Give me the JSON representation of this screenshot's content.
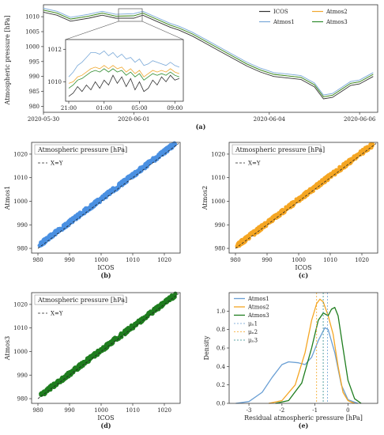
{
  "chart_data": [
    {
      "id": "a",
      "type": "line",
      "caption": "(a)",
      "ylabel": "Atmospheric pressure [hPa]",
      "xlabel": "",
      "xticks": [
        "2020-05-30",
        "2020-06-01",
        "2020-06-04",
        "2020-06-06"
      ],
      "xtick_pos": [
        0,
        2,
        5,
        7
      ],
      "ylim": [
        978,
        1014
      ],
      "yticks": [
        980,
        985,
        990,
        995,
        1000,
        1005,
        1010
      ],
      "legend": {
        "placement": "top-right",
        "items": [
          "ICOS",
          "Atmos2",
          "Atmos1",
          "Atmos3"
        ]
      },
      "series": [
        {
          "name": "ICOS",
          "color": "#333333",
          "x": [
            0,
            0.3,
            0.6,
            1.0,
            1.3,
            1.6,
            2.0,
            2.2,
            2.5,
            2.8,
            3.0,
            3.3,
            3.6,
            3.9,
            4.2,
            4.5,
            4.8,
            5.1,
            5.4,
            5.7,
            6.0,
            6.2,
            6.4,
            6.6,
            6.8,
            7.0,
            7.3
          ],
          "y": [
            1011.5,
            1010.5,
            1008.5,
            1009.5,
            1010.5,
            1009.5,
            1009.5,
            1010.5,
            1008.5,
            1006.5,
            1005.5,
            1003.5,
            1001,
            998.5,
            996,
            993.5,
            991.5,
            990,
            989.5,
            989,
            986.5,
            982.5,
            983,
            985,
            987,
            987.5,
            990
          ]
        },
        {
          "name": "Atmos1",
          "color": "#78a8d8",
          "x": [
            0,
            0.3,
            0.6,
            1.0,
            1.3,
            1.6,
            2.0,
            2.2,
            2.5,
            2.8,
            3.0,
            3.3,
            3.6,
            3.9,
            4.2,
            4.5,
            4.8,
            5.1,
            5.4,
            5.7,
            6.0,
            6.2,
            6.4,
            6.6,
            6.8,
            7.0,
            7.3
          ],
          "y": [
            1012.8,
            1011.8,
            1009.8,
            1010.8,
            1011.8,
            1010.8,
            1011,
            1011.8,
            1009.8,
            1007.8,
            1006.8,
            1004.8,
            1002.3,
            999.8,
            997.3,
            994.8,
            992.8,
            991.3,
            990.8,
            990.3,
            987.8,
            983.8,
            984.3,
            986.3,
            988.3,
            988.8,
            991.3
          ]
        },
        {
          "name": "Atmos2",
          "color": "#f0a830",
          "x": [
            0,
            0.3,
            0.6,
            1.0,
            1.3,
            1.6,
            2.0,
            2.2,
            2.5,
            2.8,
            3.0,
            3.3,
            3.6,
            3.9,
            4.2,
            4.5,
            4.8,
            5.1,
            5.4,
            5.7,
            6.0,
            6.2,
            6.4,
            6.6,
            6.8,
            7.0,
            7.3
          ],
          "y": [
            1012.2,
            1011.2,
            1009.2,
            1010.2,
            1011.2,
            1010.2,
            1010.3,
            1011.2,
            1009.2,
            1007.2,
            1006.2,
            1004.2,
            1001.7,
            999.2,
            996.7,
            994.2,
            992.2,
            990.7,
            990.2,
            989.7,
            987.2,
            983.2,
            983.7,
            985.7,
            987.7,
            988.2,
            990.7
          ]
        },
        {
          "name": "Atmos3",
          "color": "#2e8b2e",
          "x": [
            0,
            0.3,
            0.6,
            1.0,
            1.3,
            1.6,
            2.0,
            2.2,
            2.5,
            2.8,
            3.0,
            3.3,
            3.6,
            3.9,
            4.2,
            4.5,
            4.8,
            5.1,
            5.4,
            5.7,
            6.0,
            6.2,
            6.4,
            6.6,
            6.8,
            7.0,
            7.3
          ],
          "y": [
            1012.2,
            1011.2,
            1009.2,
            1010.2,
            1011.2,
            1010.2,
            1010.3,
            1011.2,
            1009.2,
            1007.2,
            1006.2,
            1004.2,
            1001.7,
            999.2,
            996.7,
            994.2,
            992.2,
            990.7,
            990.2,
            989.7,
            987.2,
            983.2,
            983.7,
            985.7,
            987.7,
            988.2,
            990.7
          ]
        }
      ],
      "inset": {
        "xticks": [
          "21:00",
          "01:00",
          "05:00",
          "09:00"
        ],
        "xtick_pos": [
          0,
          4,
          8,
          12
        ],
        "yticks": [
          1010,
          1012
        ],
        "ylim": [
          1008.8,
          1012.6
        ],
        "series": [
          {
            "name": "ICOS",
            "color": "#333333",
            "x": [
              0,
              0.5,
              1,
              1.5,
              2,
              2.5,
              3,
              3.5,
              4,
              4.5,
              5,
              5.5,
              6,
              6.5,
              7,
              7.5,
              8,
              8.5,
              9,
              9.5,
              10,
              10.5,
              11,
              11.5,
              12,
              12.5
            ],
            "y": [
              1009.1,
              1009.3,
              1009.7,
              1009.4,
              1009.8,
              1009.5,
              1010.0,
              1009.6,
              1010.1,
              1009.8,
              1010.4,
              1009.9,
              1010.3,
              1009.7,
              1010.2,
              1009.5,
              1010.0,
              1009.4,
              1009.6,
              1010.1,
              1009.8,
              1010.3,
              1010.0,
              1010.4,
              1010.1,
              1010.2
            ]
          },
          {
            "name": "Atmos1",
            "color": "#78a8d8",
            "x": [
              0,
              0.5,
              1,
              1.5,
              2,
              2.5,
              3,
              3.5,
              4,
              4.5,
              5,
              5.5,
              6,
              6.5,
              7,
              7.5,
              8,
              8.5,
              9,
              9.5,
              10,
              10.5,
              11,
              11.5,
              12,
              12.5
            ],
            "y": [
              1010.3,
              1010.6,
              1011.0,
              1011.2,
              1011.5,
              1011.8,
              1011.8,
              1011.7,
              1011.9,
              1011.6,
              1011.8,
              1011.5,
              1011.7,
              1011.4,
              1011.5,
              1011.2,
              1011.4,
              1011.0,
              1011.1,
              1011.3,
              1011.2,
              1011.1,
              1011.0,
              1011.2,
              1011.0,
              1010.9
            ]
          },
          {
            "name": "Atmos2",
            "color": "#f0a830",
            "x": [
              0,
              0.5,
              1,
              1.5,
              2,
              2.5,
              3,
              3.5,
              4,
              4.5,
              5,
              5.5,
              6,
              6.5,
              7,
              7.5,
              8,
              8.5,
              9,
              9.5,
              10,
              10.5,
              11,
              11.5,
              12,
              12.5
            ],
            "y": [
              1009.9,
              1010.0,
              1010.3,
              1010.4,
              1010.6,
              1010.8,
              1010.9,
              1010.8,
              1011.0,
              1010.8,
              1011.0,
              1010.8,
              1010.9,
              1010.6,
              1010.8,
              1010.5,
              1010.7,
              1010.3,
              1010.5,
              1010.7,
              1010.6,
              1010.7,
              1010.6,
              1010.8,
              1010.6,
              1010.5
            ]
          },
          {
            "name": "Atmos3",
            "color": "#2e8b2e",
            "x": [
              0,
              0.5,
              1,
              1.5,
              2,
              2.5,
              3,
              3.5,
              4,
              4.5,
              5,
              5.5,
              6,
              6.5,
              7,
              7.5,
              8,
              8.5,
              9,
              9.5,
              10,
              10.5,
              11,
              11.5,
              12,
              12.5
            ],
            "y": [
              1009.6,
              1009.8,
              1010.1,
              1010.2,
              1010.4,
              1010.6,
              1010.7,
              1010.6,
              1010.8,
              1010.6,
              1010.8,
              1010.6,
              1010.7,
              1010.4,
              1010.6,
              1010.3,
              1010.5,
              1010.1,
              1010.3,
              1010.5,
              1010.4,
              1010.5,
              1010.4,
              1010.6,
              1010.4,
              1010.3
            ]
          }
        ]
      }
    },
    {
      "id": "b",
      "type": "scatter",
      "caption": "(b)",
      "title": "Atmospheric pressure [hPa]",
      "xlabel": "ICOS",
      "ylabel": "Atmos1",
      "xlim": [
        978,
        1025
      ],
      "ylim": [
        978,
        1025
      ],
      "xticks": [
        980,
        990,
        1000,
        1010,
        1020
      ],
      "yticks": [
        980,
        990,
        1000,
        1010,
        1020
      ],
      "color": "#4a90e2",
      "offset": 1.0,
      "identity_label": "X=Y"
    },
    {
      "id": "c",
      "type": "scatter",
      "caption": "(c)",
      "title": "Atmospheric pressure [hPa]",
      "xlabel": "ICOS",
      "ylabel": "Atmos2",
      "xlim": [
        978,
        1025
      ],
      "ylim": [
        978,
        1025
      ],
      "xticks": [
        980,
        990,
        1000,
        1010,
        1020
      ],
      "yticks": [
        980,
        990,
        1000,
        1010,
        1020
      ],
      "color": "#f5a623",
      "offset": 0.7,
      "identity_label": "X=Y"
    },
    {
      "id": "d",
      "type": "scatter",
      "caption": "(d)",
      "title": "Atmospheric pressure [hPa]",
      "xlabel": "ICOS",
      "ylabel": "Atmos3",
      "xlim": [
        978,
        1025
      ],
      "ylim": [
        978,
        1025
      ],
      "xticks": [
        980,
        990,
        1000,
        1010,
        1020
      ],
      "yticks": [
        980,
        990,
        1000,
        1010,
        1020
      ],
      "color": "#1e7d1e",
      "offset": 0.6,
      "identity_label": "X=Y"
    },
    {
      "id": "e",
      "type": "line",
      "caption": "(e)",
      "xlabel": "Residual atmospheric pressure [hPa]",
      "ylabel": "Density",
      "xlim": [
        -3.6,
        0.9
      ],
      "ylim": [
        0,
        1.2
      ],
      "xticks": [
        -3,
        -2,
        -1,
        0
      ],
      "yticks": [
        0.0,
        0.2,
        0.4,
        0.6,
        0.8,
        1.0
      ],
      "legend": {
        "placement": "top-left",
        "items": [
          "Atmos1",
          "Atmos2",
          "Atmos3",
          "μₙ1",
          "μₙ2",
          "μₙ3"
        ]
      },
      "series": [
        {
          "name": "Atmos1",
          "color": "#6a9fd4",
          "x": [
            -3.4,
            -3.0,
            -2.6,
            -2.3,
            -2.0,
            -1.8,
            -1.5,
            -1.3,
            -1.1,
            -0.9,
            -0.7,
            -0.6,
            -0.4,
            -0.2,
            0.0,
            0.3
          ],
          "y": [
            0.0,
            0.02,
            0.12,
            0.28,
            0.42,
            0.45,
            0.44,
            0.42,
            0.5,
            0.68,
            0.82,
            0.8,
            0.55,
            0.2,
            0.04,
            0.0
          ]
        },
        {
          "name": "Atmos2",
          "color": "#f5a623",
          "x": [
            -2.4,
            -2.0,
            -1.6,
            -1.3,
            -1.1,
            -0.95,
            -0.85,
            -0.75,
            -0.6,
            -0.45,
            -0.3,
            -0.15,
            0.0,
            0.2
          ],
          "y": [
            0.0,
            0.03,
            0.2,
            0.55,
            0.9,
            1.08,
            1.13,
            1.1,
            0.95,
            0.75,
            0.4,
            0.12,
            0.03,
            0.0
          ]
        },
        {
          "name": "Atmos3",
          "color": "#1e7d1e",
          "x": [
            -2.2,
            -1.8,
            -1.4,
            -1.1,
            -0.9,
            -0.75,
            -0.6,
            -0.5,
            -0.4,
            -0.3,
            -0.15,
            0.0,
            0.2,
            0.4
          ],
          "y": [
            0.0,
            0.03,
            0.22,
            0.6,
            0.9,
            0.98,
            0.95,
            1.02,
            1.04,
            0.95,
            0.6,
            0.25,
            0.05,
            0.0
          ]
        }
      ],
      "vlines": [
        {
          "name": "μₙ1",
          "x": -0.62,
          "color": "#6a9fd4"
        },
        {
          "name": "μₙ2",
          "x": -0.95,
          "color": "#f5a623"
        },
        {
          "name": "μₙ3",
          "x": -0.75,
          "color": "#2e8b8b"
        }
      ]
    }
  ]
}
